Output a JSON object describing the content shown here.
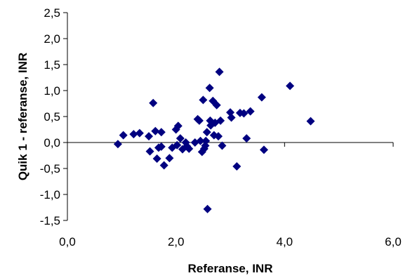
{
  "chart_data": {
    "type": "scatter",
    "title": "",
    "xlabel": "Referanse, INR",
    "ylabel": "Quik 1 - referanse, INR",
    "xlim": [
      0,
      6
    ],
    "ylim": [
      -1.5,
      2.5
    ],
    "x_ticks": [
      0,
      2,
      4,
      6
    ],
    "x_tick_labels": [
      "0,0",
      "2,0",
      "4,0",
      "6,0"
    ],
    "y_ticks": [
      -1.5,
      -1.0,
      -0.5,
      0.0,
      0.5,
      1.0,
      1.5,
      2.0,
      2.5
    ],
    "y_tick_labels": [
      "-1,5",
      "-1,0",
      "-0,5",
      "0,0",
      "0,5",
      "1,0",
      "1,5",
      "2,0",
      "2,5"
    ],
    "grid": false,
    "zero_line": true,
    "marker": "diamond",
    "marker_color": "#000080",
    "series": [
      {
        "points": [
          [
            0.93,
            -0.03
          ],
          [
            1.03,
            0.14
          ],
          [
            1.22,
            0.16
          ],
          [
            1.33,
            0.18
          ],
          [
            1.5,
            0.12
          ],
          [
            1.52,
            -0.17
          ],
          [
            1.58,
            0.76
          ],
          [
            1.62,
            0.22
          ],
          [
            1.65,
            -0.31
          ],
          [
            1.68,
            -0.1
          ],
          [
            1.73,
            0.2
          ],
          [
            1.73,
            -0.08
          ],
          [
            1.78,
            -0.44
          ],
          [
            1.88,
            -0.3
          ],
          [
            1.93,
            -0.1
          ],
          [
            2.0,
            0.25
          ],
          [
            2.02,
            -0.05
          ],
          [
            2.04,
            0.32
          ],
          [
            2.08,
            0.08
          ],
          [
            2.12,
            -0.13
          ],
          [
            2.18,
            0.0
          ],
          [
            2.2,
            -0.07
          ],
          [
            2.24,
            -0.12
          ],
          [
            2.35,
            0.0
          ],
          [
            2.4,
            0.45
          ],
          [
            2.43,
            0.42
          ],
          [
            2.45,
            0.03
          ],
          [
            2.48,
            -0.18
          ],
          [
            2.5,
            0.82
          ],
          [
            2.52,
            -0.12
          ],
          [
            2.54,
            -0.06
          ],
          [
            2.55,
            0.03
          ],
          [
            2.57,
            0.2
          ],
          [
            2.58,
            -1.28
          ],
          [
            2.62,
            1.05
          ],
          [
            2.63,
            0.42
          ],
          [
            2.64,
            0.33
          ],
          [
            2.68,
            0.8
          ],
          [
            2.7,
            0.14
          ],
          [
            2.72,
            0.38
          ],
          [
            2.75,
            0.72
          ],
          [
            2.78,
            0.12
          ],
          [
            2.8,
            1.36
          ],
          [
            2.82,
            0.42
          ],
          [
            2.85,
            -0.06
          ],
          [
            3.0,
            0.58
          ],
          [
            3.02,
            0.48
          ],
          [
            3.12,
            -0.46
          ],
          [
            3.18,
            0.57
          ],
          [
            3.25,
            0.56
          ],
          [
            3.3,
            0.08
          ],
          [
            3.37,
            0.6
          ],
          [
            3.58,
            0.87
          ],
          [
            3.62,
            -0.14
          ],
          [
            4.1,
            1.09
          ],
          [
            4.48,
            0.41
          ]
        ]
      }
    ]
  }
}
